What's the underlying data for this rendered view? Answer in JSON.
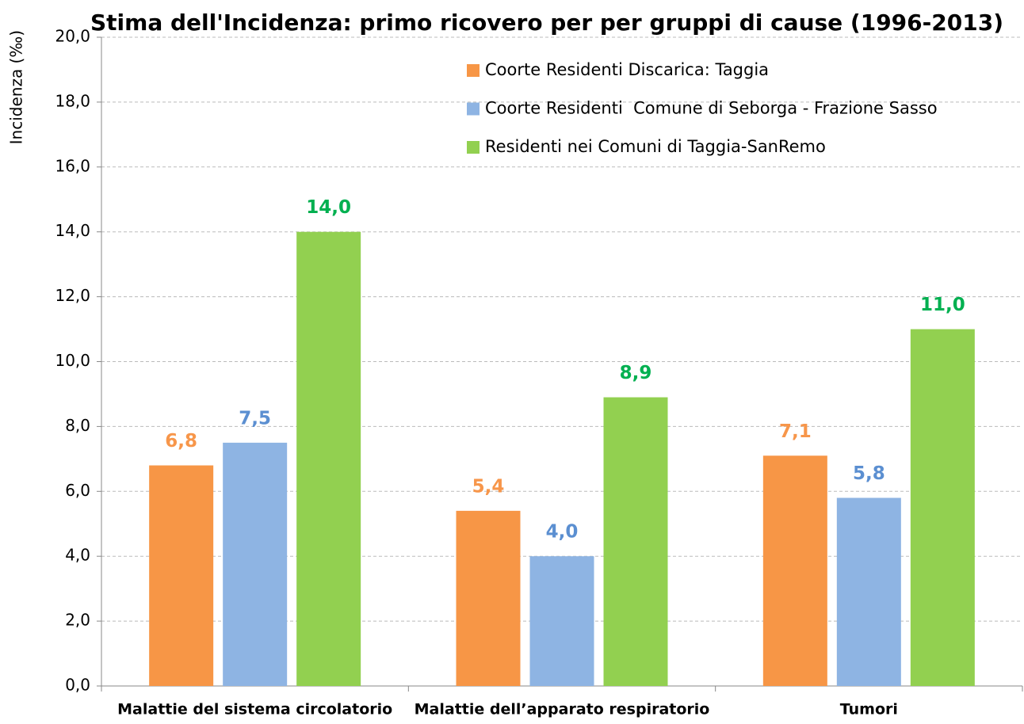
{
  "chart_data": {
    "type": "bar",
    "title": "Stima dell'Incidenza: primo ricovero per per gruppi di cause (1996-2013)",
    "y_label": "Incidenza (‰)",
    "categories": [
      "Malattie del sistema circolatorio",
      "Malattie dell’apparato respiratorio",
      "Tumori"
    ],
    "series": [
      {
        "name": "Coorte Residenti Discarica: Taggia",
        "color": "#f79646",
        "label_color": "#f7964a",
        "values": [
          6.8,
          5.4,
          7.1
        ],
        "value_labels": [
          "6,8",
          "5,4",
          "7,1"
        ]
      },
      {
        "name": "Coorte Residenti  Comune di Seborga - Frazione Sasso",
        "color": "#8eb4e3",
        "label_color": "#5b8fd1",
        "values": [
          7.5,
          4.0,
          5.8
        ],
        "value_labels": [
          "7,5",
          "4,0",
          "5,8"
        ]
      },
      {
        "name": "Residenti nei Comuni di Taggia-SanRemo",
        "color": "#92d050",
        "label_color": "#00b050",
        "values": [
          14.0,
          8.9,
          11.0
        ],
        "value_labels": [
          "14,0",
          "8,9",
          "11,0"
        ]
      }
    ],
    "ylim": [
      0,
      20
    ],
    "yticks": [
      {
        "value": 0,
        "label": "0,0"
      },
      {
        "value": 2,
        "label": "2,0"
      },
      {
        "value": 4,
        "label": "4,0"
      },
      {
        "value": 6,
        "label": "6,0"
      },
      {
        "value": 8,
        "label": "8,0"
      },
      {
        "value": 10,
        "label": "10,0"
      },
      {
        "value": 12,
        "label": "12,0"
      },
      {
        "value": 14,
        "label": "14,0"
      },
      {
        "value": 16,
        "label": "16,0"
      },
      {
        "value": 18,
        "label": "18,0"
      },
      {
        "value": 20,
        "label": "20,0"
      }
    ],
    "grid": true
  }
}
